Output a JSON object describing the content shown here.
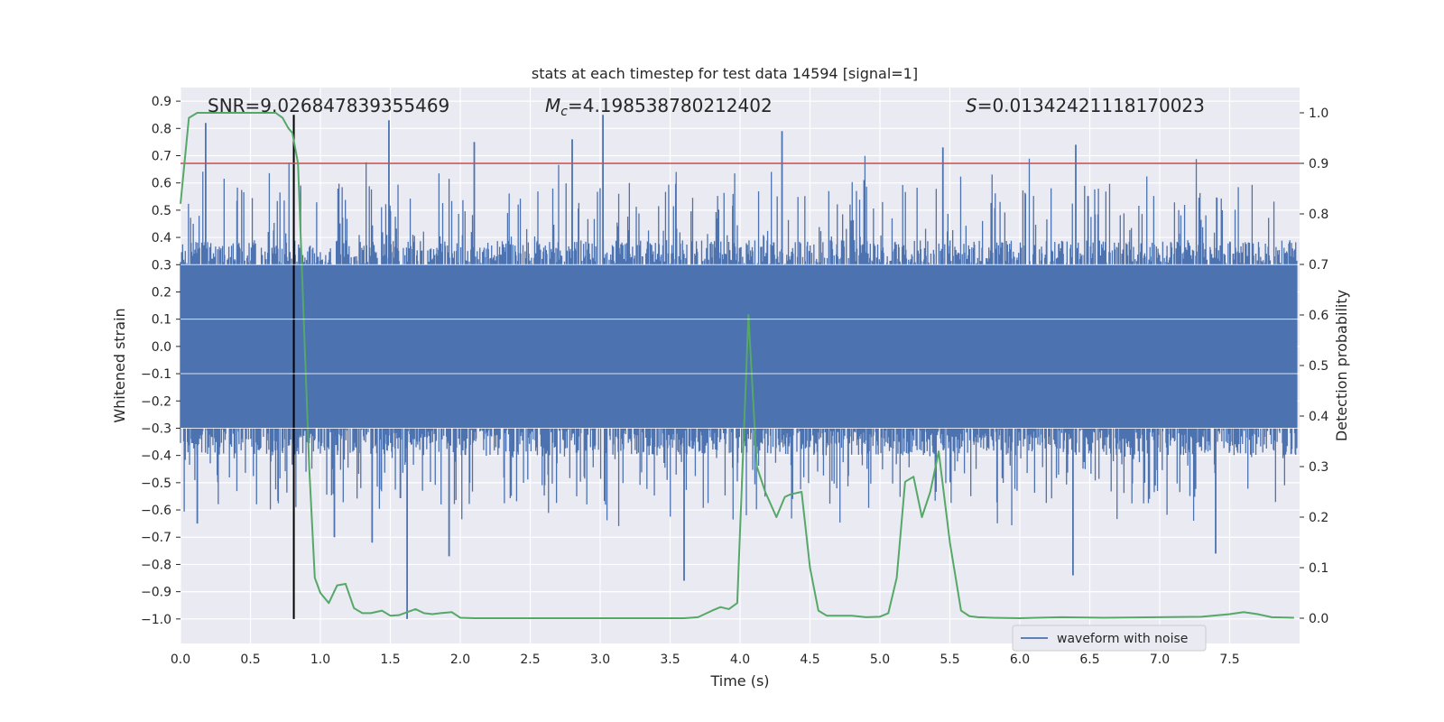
{
  "chart_data": {
    "type": "line",
    "title": "stats at each timestep for test data 14594 [signal=1]",
    "xlabel": "Time (s)",
    "ylabel": "Whitened strain",
    "y2label": "Detection probability",
    "xlim": [
      0.0,
      8.0
    ],
    "ylim": [
      -1.09,
      0.95
    ],
    "y2lim": [
      -0.05,
      1.05
    ],
    "x_ticks": [
      "0.0",
      "0.5",
      "1.0",
      "1.5",
      "2.0",
      "2.5",
      "3.0",
      "3.5",
      "4.0",
      "4.5",
      "5.0",
      "5.5",
      "6.0",
      "6.5",
      "7.0",
      "7.5"
    ],
    "y_ticks": [
      "0.9",
      "0.8",
      "0.7",
      "0.6",
      "0.5",
      "0.4",
      "0.3",
      "0.2",
      "0.1",
      "0.0",
      "-0.1",
      "-0.2",
      "-0.3",
      "-0.4",
      "-0.5",
      "-0.6",
      "-0.7",
      "-0.8",
      "-0.9",
      "-1.0"
    ],
    "y2_ticks": [
      "1.0",
      "0.9",
      "0.8",
      "0.7",
      "0.6",
      "0.5",
      "0.4",
      "0.3",
      "0.2",
      "0.1",
      "0.0"
    ],
    "grid": true,
    "legend": {
      "position": "lower-right",
      "entries": [
        "waveform with noise"
      ]
    },
    "annotations": {
      "snr": "SNR=9.026847839355469",
      "mc_symbol": "M",
      "mc_sub": "c",
      "mc_value": "=4.198538780212402",
      "s_symbol": "S",
      "s_value": "=0.01342421118170023"
    },
    "colors": {
      "waveform": "#4c72b0",
      "probability": "#55a868",
      "threshold": "#c44e52",
      "marker": "#000000",
      "background": "#eaeaf2",
      "grid": "#ffffff"
    },
    "threshold": {
      "axis": "y2",
      "value": 0.9
    },
    "vertical_marker": {
      "x": 0.81,
      "y_from": -1.0,
      "y_to": 0.85
    },
    "series": [
      {
        "name": "waveform with noise",
        "axis": "y",
        "kind": "noise",
        "core_amplitude": 0.3,
        "x_range": [
          0.0,
          8.0
        ],
        "notable_peaks": [
          {
            "x": 0.18,
            "y": 0.82
          },
          {
            "x": 0.81,
            "y": 0.84
          },
          {
            "x": 1.49,
            "y": 0.83
          },
          {
            "x": 2.1,
            "y": 0.75
          },
          {
            "x": 2.8,
            "y": 0.76
          },
          {
            "x": 3.02,
            "y": 0.85
          },
          {
            "x": 4.3,
            "y": 0.79
          },
          {
            "x": 5.45,
            "y": 0.73
          },
          {
            "x": 6.4,
            "y": 0.74
          }
        ],
        "notable_troughs": [
          {
            "x": 0.12,
            "y": -0.65
          },
          {
            "x": 1.1,
            "y": -0.7
          },
          {
            "x": 1.37,
            "y": -0.72
          },
          {
            "x": 1.62,
            "y": -1.0
          },
          {
            "x": 1.92,
            "y": -0.77
          },
          {
            "x": 3.6,
            "y": -0.86
          },
          {
            "x": 6.38,
            "y": -0.84
          },
          {
            "x": 7.4,
            "y": -0.76
          }
        ]
      },
      {
        "name": "",
        "axis": "y2",
        "kind": "line",
        "x": [
          0.0,
          0.06,
          0.12,
          0.2,
          0.3,
          0.4,
          0.5,
          0.6,
          0.68,
          0.73,
          0.77,
          0.8,
          0.84,
          0.88,
          0.92,
          0.96,
          1.0,
          1.06,
          1.12,
          1.18,
          1.24,
          1.3,
          1.36,
          1.44,
          1.5,
          1.56,
          1.62,
          1.68,
          1.74,
          1.8,
          1.86,
          1.94,
          2.0,
          2.1,
          2.4,
          2.8,
          3.2,
          3.6,
          3.7,
          3.8,
          3.86,
          3.92,
          3.98,
          4.06,
          4.12,
          4.18,
          4.26,
          4.32,
          4.36,
          4.44,
          4.5,
          4.56,
          4.62,
          4.7,
          4.8,
          4.9,
          5.0,
          5.06,
          5.12,
          5.18,
          5.24,
          5.3,
          5.36,
          5.42,
          5.5,
          5.58,
          5.64,
          5.7,
          5.8,
          6.0,
          6.3,
          6.6,
          7.0,
          7.3,
          7.5,
          7.6,
          7.7,
          7.8,
          7.96
        ],
        "y": [
          0.82,
          0.99,
          1.0,
          1.0,
          1.0,
          1.0,
          1.0,
          1.0,
          1.0,
          0.99,
          0.97,
          0.96,
          0.9,
          0.6,
          0.3,
          0.08,
          0.05,
          0.03,
          0.065,
          0.068,
          0.02,
          0.01,
          0.01,
          0.015,
          0.005,
          0.006,
          0.012,
          0.018,
          0.01,
          0.008,
          0.01,
          0.012,
          0.001,
          0.0,
          0.0,
          0.0,
          0.0,
          0.0,
          0.002,
          0.015,
          0.022,
          0.018,
          0.03,
          0.6,
          0.3,
          0.25,
          0.2,
          0.24,
          0.245,
          0.25,
          0.1,
          0.015,
          0.005,
          0.005,
          0.005,
          0.002,
          0.003,
          0.01,
          0.08,
          0.27,
          0.28,
          0.2,
          0.25,
          0.33,
          0.15,
          0.015,
          0.004,
          0.002,
          0.001,
          0.0,
          0.002,
          0.001,
          0.002,
          0.003,
          0.008,
          0.012,
          0.008,
          0.002,
          0.001
        ]
      }
    ]
  }
}
